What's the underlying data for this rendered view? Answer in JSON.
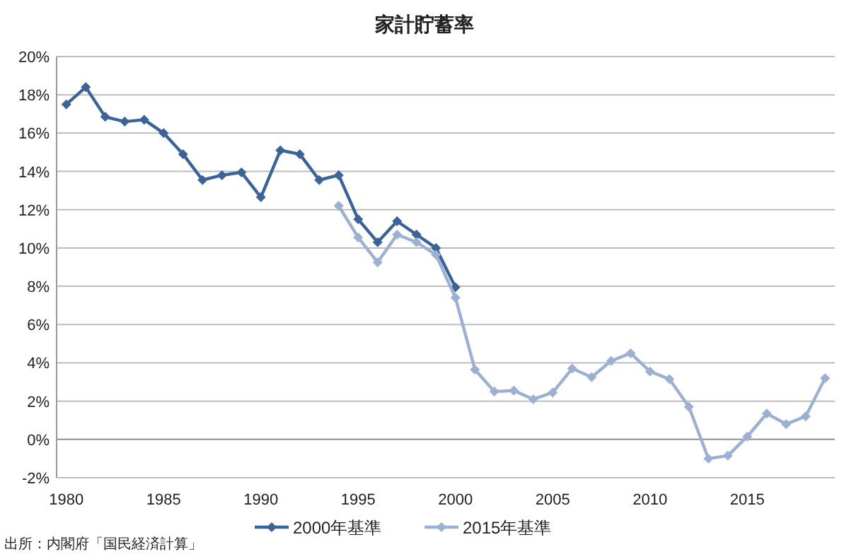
{
  "chart_data": {
    "type": "line",
    "title": "家計貯蓄率",
    "xlim": [
      1979.5,
      2019.5
    ],
    "xticks": [
      1980,
      1985,
      1990,
      1995,
      2000,
      2005,
      2010,
      2015
    ],
    "ylim": [
      -2,
      20
    ],
    "yticks": [
      {
        "value": -2,
        "label": "-2%"
      },
      {
        "value": 0,
        "label": "0%"
      },
      {
        "value": 2,
        "label": "2%"
      },
      {
        "value": 4,
        "label": "4%"
      },
      {
        "value": 6,
        "label": "6%"
      },
      {
        "value": 8,
        "label": "8%"
      },
      {
        "value": 10,
        "label": "10%"
      },
      {
        "value": 12,
        "label": "12%"
      },
      {
        "value": 14,
        "label": "14%"
      },
      {
        "value": 16,
        "label": "16%"
      },
      {
        "value": 18,
        "label": "18%"
      },
      {
        "value": 20,
        "label": "20%"
      }
    ],
    "grid": "y",
    "legend": "bottom",
    "marker": "diamond",
    "series": [
      {
        "name": "2000年基準",
        "color": "#3a6399",
        "x": [
          1980,
          1981,
          1982,
          1983,
          1984,
          1985,
          1986,
          1987,
          1988,
          1989,
          1990,
          1991,
          1992,
          1993,
          1994,
          1995,
          1996,
          1997,
          1998,
          1999,
          2000
        ],
        "values": [
          17.5,
          18.4,
          16.85,
          16.6,
          16.7,
          16.0,
          14.9,
          13.55,
          13.8,
          13.95,
          12.65,
          15.1,
          14.9,
          13.55,
          13.8,
          11.5,
          10.3,
          11.4,
          10.7,
          10.0,
          7.95
        ]
      },
      {
        "name": "2015年基準",
        "color": "#9bb0d3",
        "x": [
          1994,
          1995,
          1996,
          1997,
          1998,
          1999,
          2000,
          2001,
          2002,
          2003,
          2004,
          2005,
          2006,
          2007,
          2008,
          2009,
          2010,
          2011,
          2012,
          2013,
          2014,
          2015,
          2016,
          2017,
          2018,
          2019
        ],
        "values": [
          12.2,
          10.55,
          9.25,
          10.7,
          10.3,
          9.65,
          7.4,
          3.65,
          2.5,
          2.55,
          2.1,
          2.45,
          3.7,
          3.25,
          4.1,
          4.5,
          3.55,
          3.15,
          1.7,
          -1.0,
          -0.85,
          0.15,
          1.35,
          0.8,
          1.2,
          3.2
        ]
      }
    ],
    "annotations": [
      "出所：内閣府「国民経済計算」"
    ]
  }
}
